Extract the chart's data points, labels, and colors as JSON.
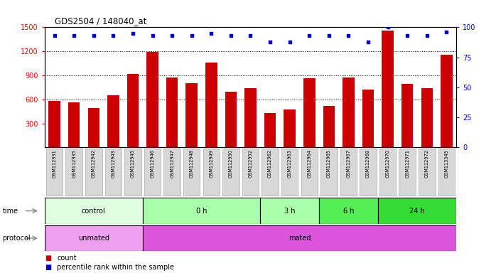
{
  "title": "GDS2504 / 148040_at",
  "samples": [
    "GSM112931",
    "GSM112935",
    "GSM112942",
    "GSM112943",
    "GSM112945",
    "GSM112946",
    "GSM112947",
    "GSM112948",
    "GSM112949",
    "GSM112950",
    "GSM112952",
    "GSM112962",
    "GSM112963",
    "GSM112964",
    "GSM112965",
    "GSM112967",
    "GSM112968",
    "GSM112970",
    "GSM112971",
    "GSM112972",
    "GSM113345"
  ],
  "counts": [
    580,
    560,
    490,
    650,
    920,
    1190,
    870,
    800,
    1060,
    700,
    740,
    430,
    470,
    860,
    520,
    870,
    720,
    1460,
    790,
    740,
    1160
  ],
  "percentile_ranks": [
    93,
    93,
    93,
    93,
    95,
    93,
    93,
    93,
    95,
    93,
    93,
    88,
    88,
    93,
    93,
    93,
    88,
    100,
    93,
    93,
    96
  ],
  "ylim_left": [
    0,
    1500
  ],
  "ylim_right": [
    0,
    100
  ],
  "yticks_left": [
    300,
    600,
    900,
    1200,
    1500
  ],
  "yticks_right": [
    0,
    25,
    50,
    75,
    100
  ],
  "bar_color": "#cc0000",
  "dot_color": "#0000cc",
  "time_groups": [
    {
      "label": "control",
      "start": 0,
      "end": 5,
      "color": "#e0ffe0"
    },
    {
      "label": "0 h",
      "start": 5,
      "end": 11,
      "color": "#aaffaa"
    },
    {
      "label": "3 h",
      "start": 11,
      "end": 14,
      "color": "#aaffaa"
    },
    {
      "label": "6 h",
      "start": 14,
      "end": 17,
      "color": "#55ee55"
    },
    {
      "label": "24 h",
      "start": 17,
      "end": 21,
      "color": "#33dd33"
    }
  ],
  "protocol_groups": [
    {
      "label": "unmated",
      "start": 0,
      "end": 5,
      "color": "#f0a0f0"
    },
    {
      "label": "mated",
      "start": 5,
      "end": 21,
      "color": "#dd55dd"
    }
  ],
  "legend_items": [
    {
      "color": "#cc0000",
      "label": "count"
    },
    {
      "color": "#0000cc",
      "label": "percentile rank within the sample"
    }
  ],
  "time_label": "time",
  "protocol_label": "protocol",
  "background_color": "#ffffff",
  "plot_bg_color": "#ffffff",
  "xtick_bg_color": "#d8d8d8"
}
